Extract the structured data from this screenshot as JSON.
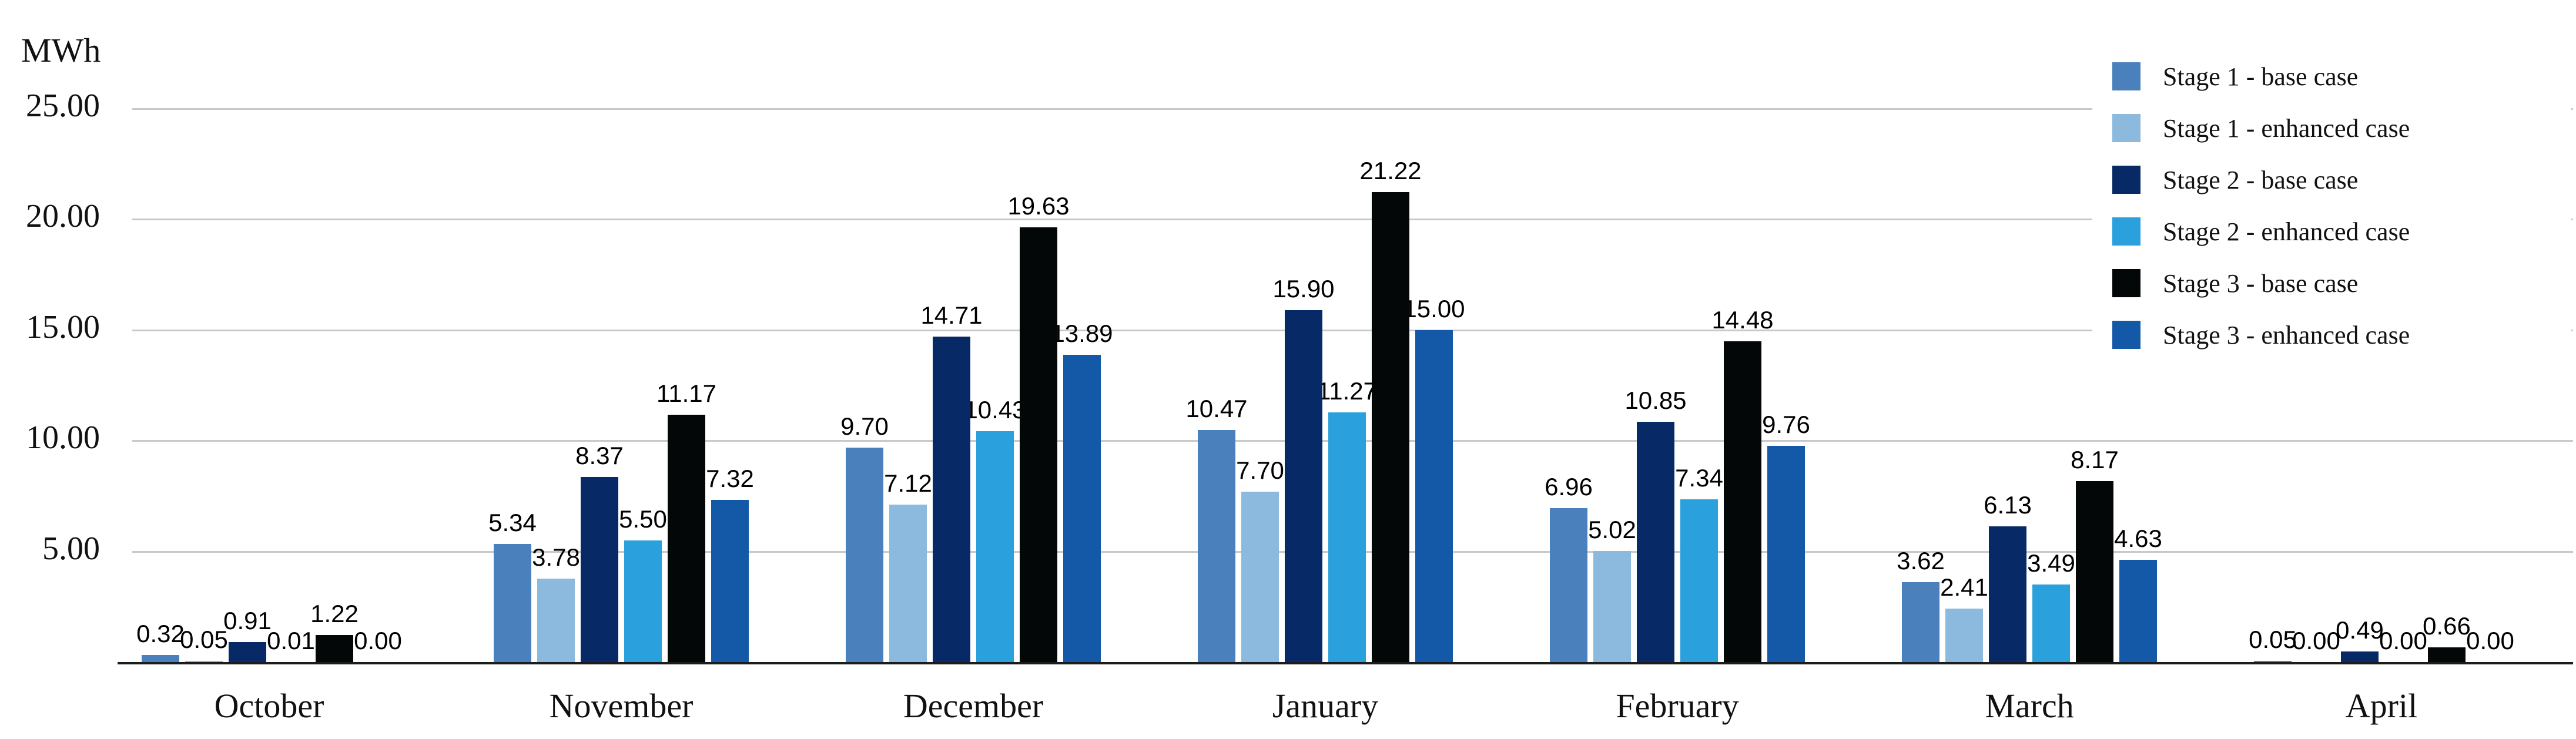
{
  "chart": {
    "unit_label": "MWh",
    "background_color": "#ffffff",
    "gridline_color": "#c9c9c9",
    "axis_line_color": "#1c1c1c",
    "text_color": "#111111"
  },
  "chart_data": {
    "type": "bar",
    "title": "",
    "xlabel": "",
    "ylabel": "MWh",
    "ylim": [
      0,
      25
    ],
    "grid": true,
    "legend_position": "top-right",
    "y_ticks": [
      25,
      20,
      15,
      10,
      5
    ],
    "y_tick_labels": [
      "25.00",
      "20.00",
      "15.00",
      "10.00",
      "5.00"
    ],
    "value_label_decimals": 2,
    "categories": [
      "October",
      "November",
      "December",
      "January",
      "February",
      "March",
      "April"
    ],
    "series": [
      {
        "name": "Stage 1 - base case",
        "color": "#4A80BC",
        "values": [
          0.32,
          5.34,
          9.7,
          10.47,
          6.96,
          3.62,
          0.05
        ]
      },
      {
        "name": "Stage 1 - enhanced case",
        "color": "#8CBADF",
        "values": [
          0.05,
          3.78,
          7.12,
          7.7,
          5.02,
          2.41,
          0.0
        ]
      },
      {
        "name": "Stage 2 - base case",
        "color": "#072A66",
        "values": [
          0.91,
          8.37,
          14.71,
          15.9,
          10.85,
          6.13,
          0.49
        ]
      },
      {
        "name": "Stage 2 - enhanced case",
        "color": "#2AA0DC",
        "values": [
          0.01,
          5.5,
          10.43,
          11.27,
          7.34,
          3.49,
          0.0
        ]
      },
      {
        "name": "Stage 3 - base case",
        "color": "#040708",
        "values": [
          1.22,
          11.17,
          19.63,
          21.22,
          14.48,
          8.17,
          0.66
        ]
      },
      {
        "name": "Stage 3 - enhanced case",
        "color": "#1459A8",
        "values": [
          0.0,
          7.32,
          13.89,
          15.0,
          9.76,
          4.63,
          0.0
        ]
      }
    ]
  }
}
